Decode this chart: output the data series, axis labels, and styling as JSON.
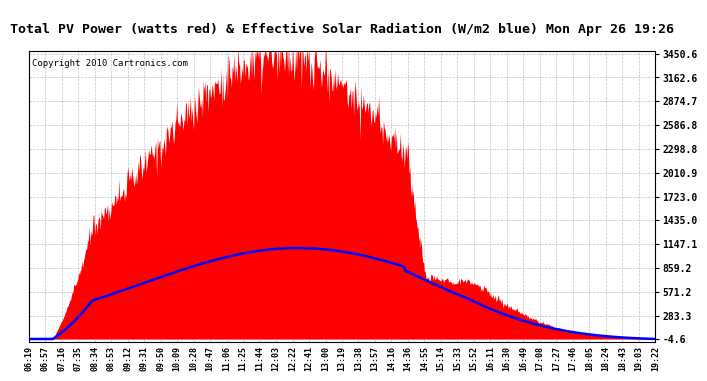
{
  "title": "Total PV Power (watts red) & Effective Solar Radiation (W/m2 blue) Mon Apr 26 19:26",
  "copyright": "Copyright 2010 Cartronics.com",
  "y_ticks": [
    -4.6,
    283.3,
    571.2,
    859.2,
    1147.1,
    1435.0,
    1723.0,
    2010.9,
    2298.8,
    2586.8,
    2874.7,
    3162.6,
    3450.6
  ],
  "y_min": -4.6,
  "y_max": 3450.6,
  "x_labels": [
    "06:19",
    "06:57",
    "07:16",
    "07:35",
    "08:34",
    "08:53",
    "09:12",
    "09:31",
    "09:50",
    "10:09",
    "10:28",
    "10:47",
    "11:06",
    "11:25",
    "11:44",
    "12:03",
    "12:22",
    "12:41",
    "13:00",
    "13:19",
    "13:38",
    "13:57",
    "14:16",
    "14:36",
    "14:55",
    "15:14",
    "15:33",
    "15:52",
    "16:11",
    "16:30",
    "16:49",
    "17:08",
    "17:27",
    "17:46",
    "18:05",
    "18:24",
    "18:43",
    "19:03",
    "19:22"
  ],
  "pv_color": "#ff0000",
  "solar_color": "#0000ff",
  "bg_color": "#ffffff",
  "grid_color": "#bbbbbb",
  "title_bg": "#c8c8c8",
  "pv_max": 3400,
  "solar_max": 1100,
  "n_points": 780
}
